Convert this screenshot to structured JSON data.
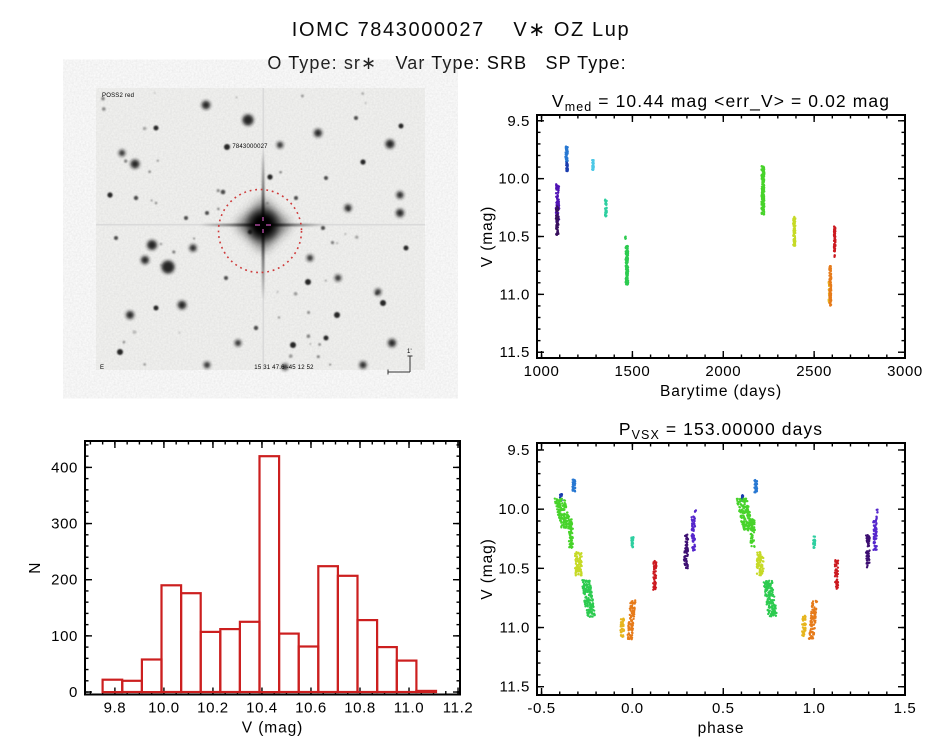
{
  "header": {
    "title": "IOMC 7843000027    V∗ OZ Lup",
    "subtitle": "O Type: sr∗   Var Type: SRB   SP Type:"
  },
  "finder": {
    "survey_label": "POSS2 red",
    "target_label": "7843000027",
    "coord_label": "15 31 47.6  -45 12 52",
    "corner_label": "E",
    "scale_label": "1'",
    "circle_color": "#cf3b3b",
    "crosshair_color": "#cc55bb",
    "label_color": "#1a2a6e",
    "target_label_color": "#b83030",
    "stars": [
      [
        110,
        17,
        4.3
      ],
      [
        152,
        32,
        5.5
      ],
      [
        222,
        45,
        4
      ],
      [
        294,
        56,
        4.5
      ],
      [
        39,
        76,
        4.5
      ],
      [
        26,
        65,
        3.2
      ],
      [
        131,
        59,
        3
      ],
      [
        184,
        57,
        3.2
      ],
      [
        267,
        74,
        2.6
      ],
      [
        304,
        107,
        3.6
      ],
      [
        304,
        125,
        4
      ],
      [
        252,
        120,
        3.6
      ],
      [
        56,
        157,
        5
      ],
      [
        72,
        179,
        6.5
      ],
      [
        49,
        172,
        4
      ],
      [
        97,
        160,
        3.6
      ],
      [
        86,
        217,
        4.3
      ],
      [
        34,
        227,
        4
      ],
      [
        214,
        170,
        3.2
      ],
      [
        212,
        194,
        3
      ],
      [
        242,
        190,
        3.2
      ],
      [
        282,
        204,
        3.2
      ],
      [
        287,
        215,
        3
      ],
      [
        142,
        255,
        3.2
      ],
      [
        197,
        257,
        3
      ],
      [
        241,
        227,
        3
      ],
      [
        296,
        255,
        4
      ],
      [
        111,
        277,
        3.2
      ],
      [
        189,
        279,
        3.2
      ],
      [
        267,
        277,
        3.6
      ],
      [
        24,
        264,
        3
      ],
      [
        14,
        107,
        2.6
      ],
      [
        174,
        89,
        2.6
      ],
      [
        127,
        104,
        2.3
      ],
      [
        154,
        144,
        2.2
      ],
      [
        227,
        140,
        2
      ],
      [
        111,
        125,
        2
      ],
      [
        305,
        38,
        2.5
      ],
      [
        60,
        40,
        2.5
      ],
      [
        90,
        130,
        2
      ],
      [
        230,
        250,
        2.5
      ],
      [
        160,
        240,
        2.2
      ],
      [
        130,
        190,
        2
      ],
      [
        60,
        220,
        2.5
      ],
      [
        310,
        160,
        2.5
      ],
      [
        20,
        150,
        2
      ],
      [
        260,
        30,
        2
      ],
      [
        200,
        110,
        2
      ],
      [
        40,
        110,
        2.2
      ],
      [
        230,
        90,
        2
      ]
    ]
  },
  "chart_data": [
    {
      "type": "scatter",
      "name": "lightcurve-barytime",
      "title_parts": [
        {
          "t": "V"
        },
        {
          "t": "med",
          "sub": true
        },
        {
          "t": "  =  10.44 mag  <err_V>  =  0.02 mag"
        }
      ],
      "xlabel": "Barytime (days)",
      "ylabel": "V (mag)",
      "xlim": [
        975,
        3000
      ],
      "ylim": [
        9.45,
        11.55
      ],
      "y_inverted_mag_axis": true,
      "xticks": [
        1000,
        1500,
        2000,
        2500,
        3000
      ],
      "xtick_labels": [
        "1000",
        "1500",
        "2000",
        "2500",
        "3000"
      ],
      "yticks": [
        9.5,
        10.0,
        10.5,
        11.0,
        11.5
      ],
      "ytick_labels": [
        "9.5",
        "10.0",
        "10.5",
        "11.0",
        "11.5"
      ],
      "xminor_step": 100,
      "yminor_step": 0.1,
      "clusters": [
        {
          "x": 1088,
          "v": [
            10.04,
            10.38
          ],
          "w": 18,
          "n": 85,
          "c": "#4f12b4"
        },
        {
          "x": 1086,
          "v": [
            10.24,
            10.49
          ],
          "w": 14,
          "n": 65,
          "c": "#38105e"
        },
        {
          "x": 1138,
          "v": [
            9.72,
            9.86
          ],
          "w": 12,
          "n": 45,
          "c": "#2878d2"
        },
        {
          "x": 1140,
          "v": [
            9.86,
            9.94
          ],
          "w": 10,
          "n": 28,
          "c": "#1a3cae"
        },
        {
          "x": 1283,
          "v": [
            9.82,
            9.93
          ],
          "w": 9,
          "n": 32,
          "c": "#4cc8e6"
        },
        {
          "x": 1354,
          "v": [
            10.18,
            10.33
          ],
          "w": 10,
          "n": 38,
          "c": "#2ecfa0"
        },
        {
          "x": 1462,
          "v": [
            10.5,
            10.53
          ],
          "w": 4,
          "n": 5,
          "c": "#2dcb50"
        },
        {
          "x": 1470,
          "v": [
            10.58,
            10.92
          ],
          "w": 14,
          "n": 150,
          "c": "#2dcb50"
        },
        {
          "x": 2218,
          "v": [
            9.88,
            10.31
          ],
          "w": 16,
          "n": 160,
          "c": "#47d32a"
        },
        {
          "x": 2391,
          "v": [
            10.33,
            10.58
          ],
          "w": 12,
          "n": 85,
          "c": "#c6da26"
        },
        {
          "x": 2583,
          "v": [
            10.88,
            11.07
          ],
          "w": 6,
          "n": 30,
          "c": "#e6b51e"
        },
        {
          "x": 2589,
          "v": [
            10.75,
            11.11
          ],
          "w": 10,
          "n": 95,
          "c": "#e67b1a"
        },
        {
          "x": 2613,
          "v": [
            10.41,
            10.63
          ],
          "w": 8,
          "n": 75,
          "c": "#cc1a20"
        },
        {
          "x": 2613,
          "v": [
            10.66,
            10.68
          ],
          "w": 4,
          "n": 4,
          "c": "#cc1a20"
        }
      ]
    },
    {
      "type": "bar",
      "name": "V-magnitude-histogram",
      "xlabel": "V (mag)",
      "ylabel": "N",
      "bin_start": 9.75,
      "bin_width": 0.08,
      "values": [
        22,
        20,
        58,
        190,
        176,
        107,
        112,
        125,
        420,
        104,
        81,
        224,
        207,
        128,
        80,
        56,
        2
      ],
      "xlim": [
        9.678,
        11.208
      ],
      "ylim": [
        0,
        447
      ],
      "xticks": [
        9.8,
        10.0,
        10.2,
        10.4,
        10.6,
        10.8,
        11.0,
        11.2
      ],
      "xtick_labels": [
        "9.8",
        "10.0",
        "10.2",
        "10.4",
        "10.6",
        "10.8",
        "11.0",
        "11.2"
      ],
      "yticks": [
        0,
        100,
        200,
        300,
        400
      ],
      "ytick_labels": [
        "0",
        "100",
        "200",
        "300",
        "400"
      ],
      "xminor_step": 0.05,
      "yminor_step": 20,
      "color": "#cc1f1f"
    },
    {
      "type": "scatter",
      "name": "phase-folded-lightcurve",
      "title_parts": [
        {
          "t": "P"
        },
        {
          "t": "VSX",
          "sub": true
        },
        {
          "t": "  =  153.00000 days"
        }
      ],
      "xlabel": "phase",
      "ylabel": "V (mag)",
      "xlim": [
        -0.525,
        1.5
      ],
      "ylim": [
        9.441,
        11.57
      ],
      "y_inverted_mag_axis": true,
      "duplicate_at_plus_one": true,
      "xticks": [
        -0.5,
        0.0,
        0.5,
        1.0,
        1.5
      ],
      "xtick_labels": [
        "-0.5",
        "0.0",
        "0.5",
        "1.0",
        "1.5"
      ],
      "yticks": [
        9.5,
        10.0,
        10.5,
        11.0,
        11.5
      ],
      "ytick_labels": [
        "9.5",
        "10.0",
        "10.5",
        "11.0",
        "11.5"
      ],
      "xminor_step": 0.1,
      "yminor_step": 0.1,
      "clusters": [
        {
          "x": -0.393,
          "v": [
            9.87,
            9.93
          ],
          "w": 0.012,
          "n": 14,
          "c": "#1a3cae"
        },
        {
          "x": -0.38,
          "v": [
            9.91,
            10.18
          ],
          "w": 0.06,
          "n": 160,
          "c": "#47d32a",
          "tilt": 0.04,
          "cols": 4
        },
        {
          "x": -0.338,
          "v": [
            10.08,
            10.33
          ],
          "w": 0.022,
          "n": 55,
          "c": "#47d32a"
        },
        {
          "x": -0.322,
          "v": [
            9.74,
            9.86
          ],
          "w": 0.015,
          "n": 34,
          "c": "#2878d2"
        },
        {
          "x": -0.297,
          "v": [
            10.36,
            10.56
          ],
          "w": 0.038,
          "n": 85,
          "c": "#c6da26",
          "cols": 3
        },
        {
          "x": -0.242,
          "v": [
            10.6,
            10.91
          ],
          "w": 0.05,
          "n": 160,
          "c": "#2dcb50",
          "tilt": 0.03,
          "cols": 4
        },
        {
          "x": 0.0,
          "v": [
            10.23,
            10.33
          ],
          "w": 0.012,
          "n": 22,
          "c": "#2ecfa0"
        },
        {
          "x": -0.056,
          "v": [
            10.9,
            11.08
          ],
          "w": 0.02,
          "n": 42,
          "c": "#e6b51e"
        },
        {
          "x": -0.006,
          "v": [
            10.77,
            11.1
          ],
          "w": 0.028,
          "n": 95,
          "c": "#e67b1a",
          "tilt": -0.02,
          "cols": 3
        },
        {
          "x": 0.123,
          "v": [
            10.43,
            10.68
          ],
          "w": 0.018,
          "n": 55,
          "c": "#cc1a20"
        },
        {
          "x": 0.295,
          "v": [
            10.21,
            10.5
          ],
          "w": 0.022,
          "n": 60,
          "c": "#3d0f72"
        },
        {
          "x": 0.335,
          "v": [
            10.06,
            10.35
          ],
          "w": 0.02,
          "n": 60,
          "c": "#5526cc"
        },
        {
          "x": 0.347,
          "v": [
            10.0,
            10.03
          ],
          "w": 0.006,
          "n": 4,
          "c": "#5526cc"
        }
      ]
    }
  ]
}
